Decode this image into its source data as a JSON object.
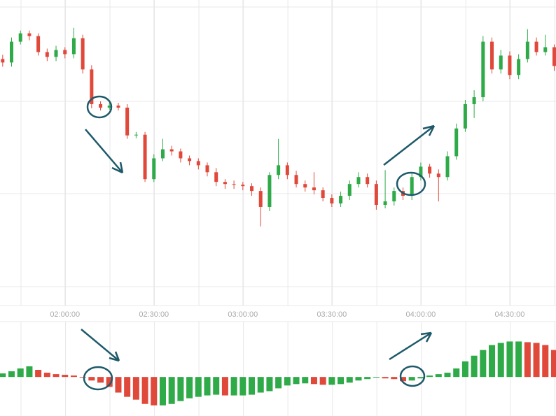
{
  "chart_data": [
    {
      "type": "candlestick",
      "xlim": [
        -0.3,
        62.2
      ],
      "ylim": [
        0,
        440
      ],
      "xticks": [
        {
          "value": 7,
          "label": "02:00:00"
        },
        {
          "value": 17,
          "label": "02:30:00"
        },
        {
          "value": 27,
          "label": "03:00:00"
        },
        {
          "value": 37,
          "label": "03:30:00"
        },
        {
          "value": 47,
          "label": "04:00:00"
        },
        {
          "value": 57,
          "label": "04:30:00"
        }
      ],
      "up_color": "#2eaa48",
      "down_color": "#e0483a",
      "open": [
        355,
        350,
        380,
        392,
        388,
        365,
        358,
        368,
        362,
        385,
        340,
        290,
        285,
        288,
        285,
        245,
        246,
        182,
        212,
        225,
        222,
        212,
        208,
        202,
        192,
        178,
        175,
        174,
        172,
        165,
        142,
        188,
        202,
        188,
        175,
        170,
        166,
        155,
        147,
        158,
        175,
        185,
        175,
        145,
        150,
        165,
        158,
        185,
        200,
        190,
        185,
        215,
        255,
        290,
        300,
        380,
        340,
        360,
        332,
        355,
        380,
        365,
        372
      ],
      "high": [
        361,
        386,
        396,
        396,
        392,
        370,
        374,
        372,
        400,
        390,
        346,
        294,
        292,
        292,
        290,
        250,
        250,
        218,
        240,
        230,
        226,
        216,
        212,
        206,
        198,
        182,
        180,
        178,
        176,
        170,
        192,
        240,
        206,
        194,
        180,
        192,
        170,
        160,
        164,
        180,
        192,
        190,
        180,
        195,
        170,
        170,
        190,
        206,
        204,
        196,
        222,
        262,
        296,
        310,
        388,
        386,
        368,
        366,
        362,
        398,
        386,
        390,
        376
      ],
      "low": [
        344,
        344,
        376,
        382,
        360,
        352,
        352,
        356,
        356,
        334,
        284,
        281,
        282,
        281,
        240,
        241,
        178,
        178,
        208,
        216,
        206,
        202,
        196,
        186,
        172,
        168,
        168,
        166,
        158,
        114,
        136,
        182,
        182,
        170,
        164,
        160,
        150,
        142,
        142,
        152,
        170,
        170,
        138,
        140,
        144,
        152,
        152,
        180,
        184,
        150,
        180,
        210,
        250,
        270,
        294,
        334,
        334,
        326,
        326,
        350,
        360,
        360,
        338
      ],
      "close": [
        350,
        380,
        392,
        388,
        365,
        358,
        368,
        362,
        385,
        340,
        290,
        285,
        288,
        285,
        245,
        246,
        182,
        212,
        225,
        222,
        212,
        208,
        202,
        192,
        178,
        175,
        174,
        172,
        165,
        142,
        188,
        202,
        188,
        175,
        170,
        166,
        155,
        147,
        158,
        175,
        185,
        175,
        145,
        150,
        165,
        158,
        185,
        200,
        190,
        185,
        215,
        255,
        290,
        300,
        380,
        340,
        360,
        332,
        355,
        380,
        365,
        372,
        345
      ]
    },
    {
      "type": "histogram-bar",
      "ylim": [
        -55,
        78
      ],
      "up_color": "#2eaa48",
      "down_color": "#e0483a",
      "values": [
        5,
        8,
        12,
        15,
        10,
        6,
        4,
        3,
        2,
        0,
        -5,
        -8,
        -14,
        -22,
        -28,
        -32,
        -38,
        -40,
        -40,
        -38,
        -34,
        -30,
        -28,
        -26,
        -25,
        -26,
        -26,
        -26,
        -25,
        -22,
        -20,
        -16,
        -12,
        -10,
        -9,
        -10,
        -11,
        -11,
        -10,
        -8,
        -5,
        -3,
        -1,
        -2,
        -3,
        -6,
        -5,
        -2,
        2,
        4,
        6,
        12,
        22,
        30,
        38,
        45,
        48,
        50,
        50,
        49,
        48,
        45,
        38
      ]
    }
  ]
}
